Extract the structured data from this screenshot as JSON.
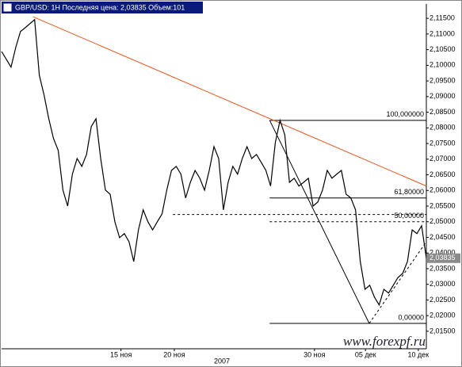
{
  "chart_data": {
    "type": "line",
    "title": "GBP/USD: 1H Последняя цена: 2,03835 Объем:101",
    "x_axis_label": "2007",
    "watermark": "www.forexpf.ru",
    "x": [
      0,
      1,
      2,
      3,
      4,
      5,
      6,
      7,
      8,
      9,
      10,
      11,
      12,
      13,
      14,
      15,
      16,
      17,
      18,
      19,
      20,
      21,
      22,
      23,
      24,
      25,
      26,
      27,
      28,
      29,
      30,
      31,
      32,
      33,
      34,
      35,
      36,
      37,
      38,
      39,
      40,
      41,
      42,
      43,
      44,
      45,
      46,
      47,
      48,
      49,
      50,
      51,
      52,
      53,
      54,
      55,
      56,
      57,
      58,
      59,
      60,
      61,
      62,
      63,
      64,
      65,
      66,
      67,
      68,
      69,
      70,
      71,
      72,
      73,
      74,
      75,
      76,
      77,
      78,
      79,
      80,
      81,
      82,
      83,
      84,
      85,
      86,
      87,
      88,
      89,
      90
    ],
    "series": [
      {
        "name": "GBP/USD",
        "color": "#000000",
        "values": [
          2.1044,
          2.1019,
          2.0994,
          2.1057,
          2.1108,
          2.112,
          2.1133,
          2.1146,
          2.0968,
          2.0905,
          2.0829,
          2.0766,
          2.0728,
          2.0601,
          2.055,
          2.0652,
          2.0702,
          2.0677,
          2.0715,
          2.0804,
          2.0829,
          2.0702,
          2.0601,
          2.0588,
          2.05,
          2.0449,
          2.0462,
          2.0436,
          2.0373,
          2.0474,
          2.0538,
          2.05,
          2.0474,
          2.05,
          2.0525,
          2.0601,
          2.0664,
          2.0677,
          2.0652,
          2.0576,
          2.0626,
          2.0664,
          2.0639,
          2.0601,
          2.0664,
          2.074,
          2.0702,
          2.0538,
          2.0626,
          2.0677,
          2.0652,
          2.0702,
          2.074,
          2.0702,
          2.0715,
          2.069,
          2.0664,
          2.0614,
          2.0753,
          2.0824,
          2.0778,
          2.0626,
          2.0639,
          2.0614,
          2.0626,
          2.0639,
          2.055,
          2.0563,
          2.0601,
          2.0664,
          2.0639,
          2.0652,
          2.0664,
          2.0588,
          2.0576,
          2.0538,
          2.0373,
          2.0284,
          2.0297,
          2.0259,
          2.0234,
          2.0284,
          2.0272,
          2.0297,
          2.0322,
          2.0335,
          2.0373,
          2.0474,
          2.0462,
          2.0487,
          2.0384
        ]
      }
    ],
    "xlim": [
      0,
      90
    ],
    "xticks": [
      {
        "value": 25.3,
        "label": "15 ноя"
      },
      {
        "value": 36.6,
        "label": "20 ноя"
      },
      {
        "value": 66.3,
        "label": "30 ноя"
      },
      {
        "value": 77.1,
        "label": "05 дек"
      },
      {
        "value": 88.3,
        "label": "10 дек"
      }
    ],
    "ylim": [
      2.0094,
      2.1196
    ],
    "yticks": [
      {
        "value": 2.015,
        "label": "2,01500"
      },
      {
        "value": 2.02,
        "label": "2,02000"
      },
      {
        "value": 2.025,
        "label": "2,02500"
      },
      {
        "value": 2.03,
        "label": "2,03000"
      },
      {
        "value": 2.035,
        "label": "2,03500"
      },
      {
        "value": 2.04,
        "label": "2,04000"
      },
      {
        "value": 2.045,
        "label": "2,04500"
      },
      {
        "value": 2.05,
        "label": "2,05000"
      },
      {
        "value": 2.055,
        "label": "2,05500"
      },
      {
        "value": 2.06,
        "label": "2,06000"
      },
      {
        "value": 2.065,
        "label": "2,06500"
      },
      {
        "value": 2.07,
        "label": "2,07000"
      },
      {
        "value": 2.075,
        "label": "2,07500"
      },
      {
        "value": 2.08,
        "label": "2,08000"
      },
      {
        "value": 2.085,
        "label": "2,08500"
      },
      {
        "value": 2.09,
        "label": "2,09000"
      },
      {
        "value": 2.095,
        "label": "2,09500"
      },
      {
        "value": 2.1,
        "label": "2,10000"
      },
      {
        "value": 2.105,
        "label": "2,10500"
      },
      {
        "value": 2.11,
        "label": "2,11000"
      },
      {
        "value": 2.115,
        "label": "2,11500"
      }
    ],
    "last_price": {
      "value": 2.03835,
      "label": "2,03835"
    },
    "fib_levels": [
      {
        "label": "100,000000",
        "value": 2.0824,
        "start": 56.8
      },
      {
        "label": "61,80000",
        "value": 2.0576,
        "start": 56.8
      },
      {
        "label": "50,00000",
        "value": 2.05,
        "start": 56.8
      },
      {
        "label": "0,00000",
        "value": 2.0175,
        "start": 56.8
      }
    ],
    "trend_lines": [
      {
        "color": "#e8551e",
        "dashed": false,
        "x": [
          6.7,
          90
        ],
        "y": [
          2.1155,
          2.0614
        ]
      },
      {
        "color": "#000000",
        "dashed": false,
        "x": [
          56.8,
          77.9
        ],
        "y": [
          2.0824,
          2.0175
        ]
      },
      {
        "color": "#000000",
        "dashed": true,
        "x": [
          77.9,
          90
        ],
        "y": [
          2.0175,
          2.0436
        ]
      },
      {
        "color": "#000000",
        "dashed": true,
        "x": [
          36.3,
          90
        ],
        "y": [
          2.0523,
          2.0523
        ]
      }
    ]
  }
}
